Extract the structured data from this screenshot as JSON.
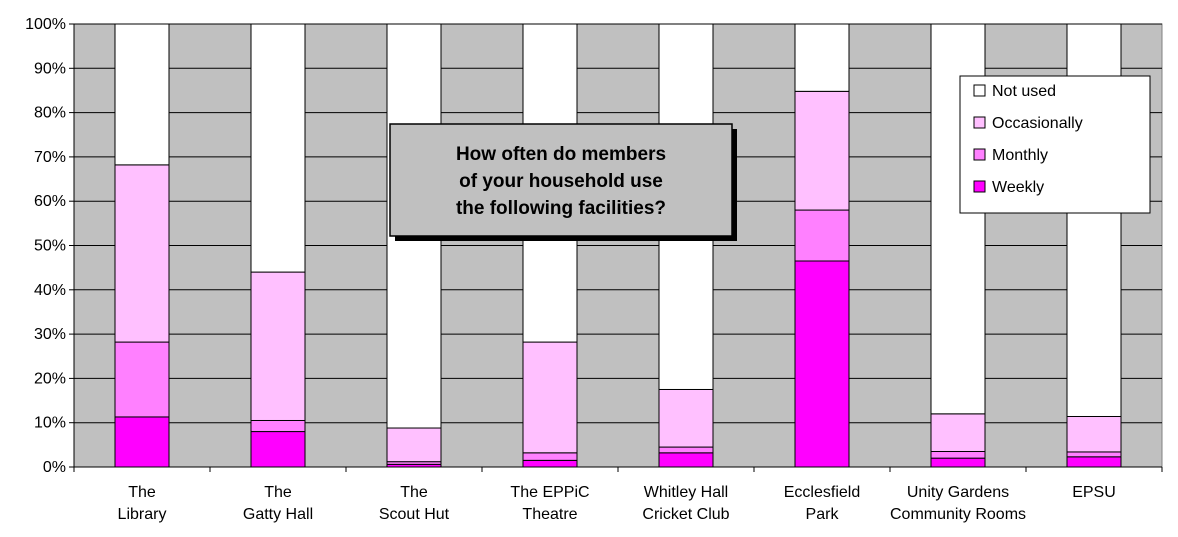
{
  "chart_data": {
    "type": "bar",
    "stacked": true,
    "percent": true,
    "title_lines": [
      "How often do members",
      "of your household use",
      "the following facilities?"
    ],
    "categories": [
      [
        "The",
        "Library"
      ],
      [
        "The",
        "Gatty Hall"
      ],
      [
        "The",
        "Scout Hut"
      ],
      [
        "The EPPiC",
        "Theatre"
      ],
      [
        "Whitley Hall",
        "Cricket Club"
      ],
      [
        "Ecclesfield",
        "Park"
      ],
      [
        "Unity Gardens",
        "Community Rooms"
      ],
      [
        "EPSU",
        ""
      ]
    ],
    "series": [
      {
        "name": "Weekly",
        "color": "#ff00ff",
        "values": [
          11.3,
          8.0,
          0.6,
          1.5,
          3.2,
          46.5,
          2.0,
          2.3
        ]
      },
      {
        "name": "Monthly",
        "color": "#ff80ff",
        "values": [
          16.9,
          2.5,
          0.6,
          1.7,
          1.3,
          11.5,
          1.5,
          1.1
        ]
      },
      {
        "name": "Occasionally",
        "color": "#ffc0ff",
        "values": [
          40.0,
          33.5,
          7.6,
          25.0,
          13.0,
          26.8,
          8.5,
          8.0
        ]
      },
      {
        "name": "Not used",
        "color": "#ffffff",
        "values": [
          31.8,
          56.0,
          91.2,
          71.8,
          82.5,
          15.2,
          88.0,
          88.6
        ]
      }
    ],
    "legend_order": [
      "Not used",
      "Occasionally",
      "Monthly",
      "Weekly"
    ],
    "ylim": [
      0,
      100
    ],
    "yticks": [
      "0%",
      "10%",
      "20%",
      "30%",
      "40%",
      "50%",
      "60%",
      "70%",
      "80%",
      "90%",
      "100%"
    ],
    "plot_background": "#c0c0c0",
    "gridlines": true,
    "legend_position": "top-right"
  }
}
